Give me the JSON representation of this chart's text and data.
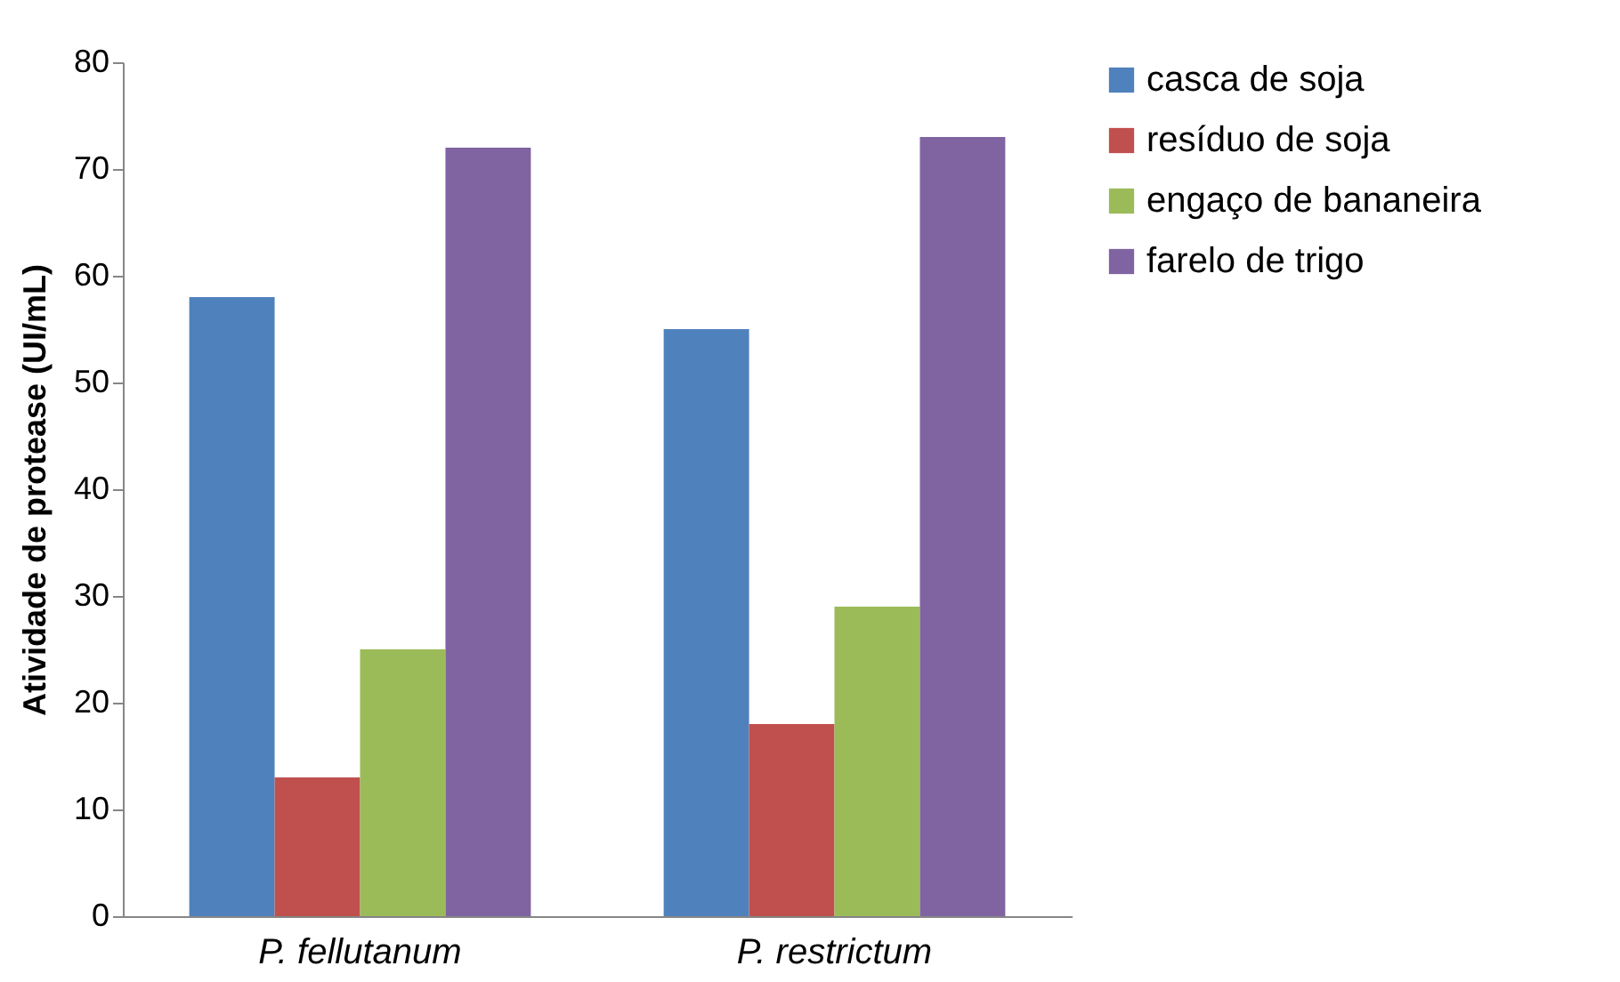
{
  "chart_data": {
    "type": "bar",
    "ylabel": "Atividade de protease (UI/mL)",
    "categories": [
      "P. fellutanum",
      "P. restrictum"
    ],
    "series": [
      {
        "name": "casca de soja",
        "color": "#4f81bd",
        "values": [
          58,
          55
        ]
      },
      {
        "name": "resíduo de soja",
        "color": "#c0504d",
        "values": [
          13,
          18
        ]
      },
      {
        "name": "engaço de bananeira",
        "color": "#9bbb59",
        "values": [
          25,
          29
        ]
      },
      {
        "name": "farelo de trigo",
        "color": "#8064a2",
        "values": [
          72,
          73
        ]
      }
    ],
    "ylim": [
      0,
      80
    ],
    "yticks": [
      0,
      10,
      20,
      30,
      40,
      50,
      60,
      70,
      80
    ],
    "legend": "right",
    "grid": false
  }
}
